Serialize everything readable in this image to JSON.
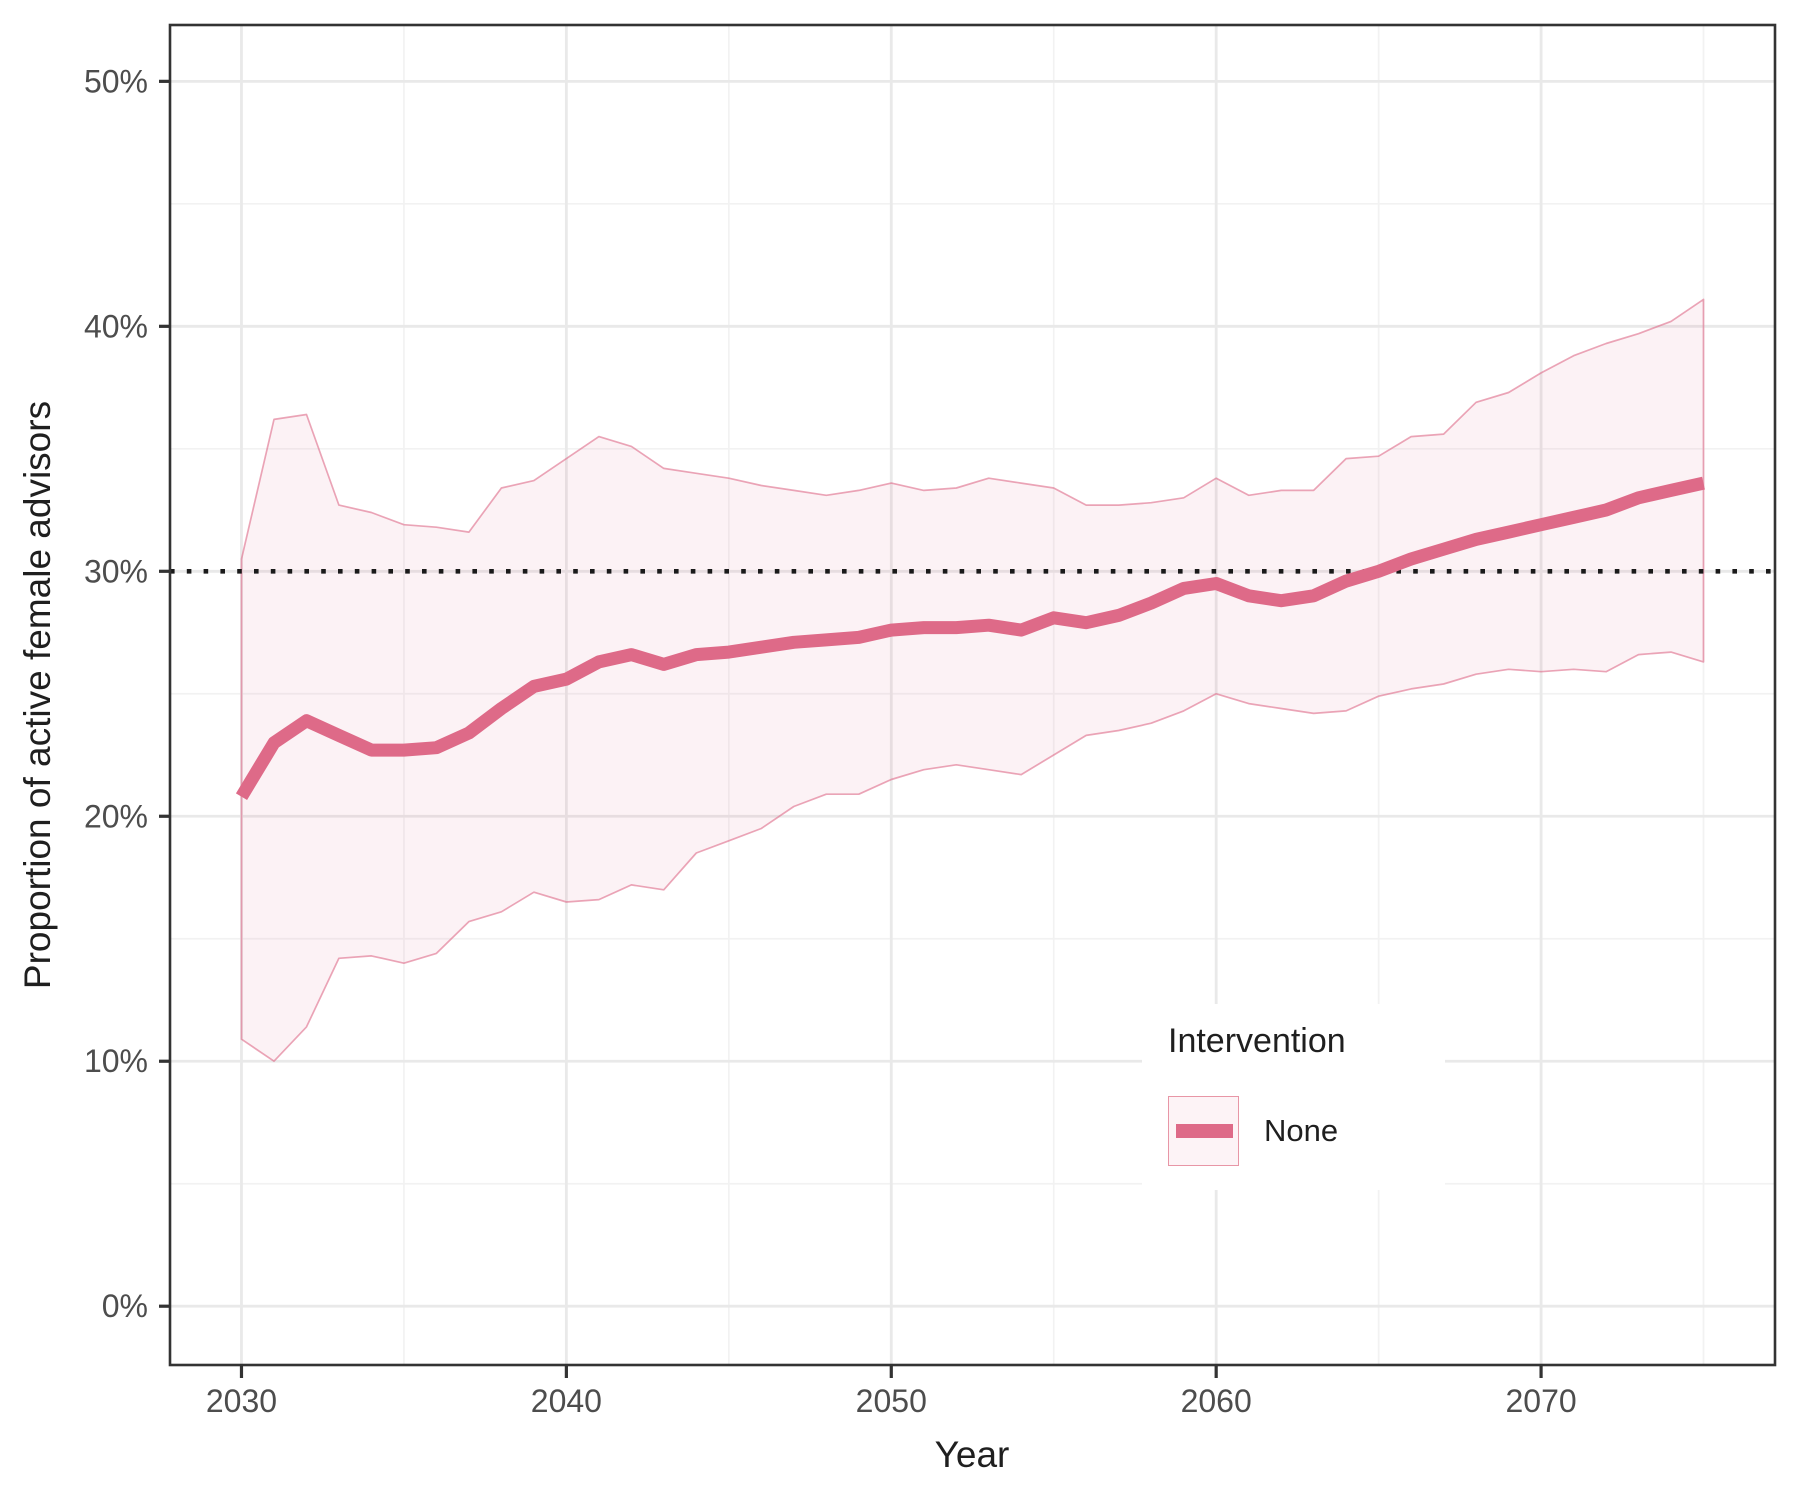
{
  "legend": {
    "title": "Intervention",
    "items": [
      {
        "label": "None",
        "line_color": "#de6a88",
        "key_fill": "#fdf3f6",
        "key_border": "#e896a6"
      }
    ]
  },
  "chart_data": {
    "type": "line",
    "title": "",
    "xlabel": "Year",
    "ylabel": "Proportion of active female advisors",
    "legend_position": "inside-right-lower",
    "grid": "on",
    "xlim": [
      2027.8,
      2077.2
    ],
    "ylim": [
      -2.4,
      52.3
    ],
    "x_ticks_major": [
      2030,
      2040,
      2050,
      2060,
      2070
    ],
    "x_tick_labels": [
      "2030",
      "2040",
      "2050",
      "2060",
      "2070"
    ],
    "x_ticks_minor": [
      2035,
      2045,
      2055,
      2065,
      2075
    ],
    "y_ticks_major": [
      0,
      10,
      20,
      30,
      40,
      50
    ],
    "y_tick_labels": [
      "0%",
      "10%",
      "20%",
      "30%",
      "40%",
      "50%"
    ],
    "y_ticks_minor": [
      5,
      15,
      25,
      35,
      45
    ],
    "reference_line_y": 30,
    "x": [
      2030,
      2031,
      2032,
      2033,
      2034,
      2035,
      2036,
      2037,
      2038,
      2039,
      2040,
      2041,
      2042,
      2043,
      2044,
      2045,
      2046,
      2047,
      2048,
      2049,
      2050,
      2051,
      2052,
      2053,
      2054,
      2055,
      2056,
      2057,
      2058,
      2059,
      2060,
      2061,
      2062,
      2063,
      2064,
      2065,
      2066,
      2067,
      2068,
      2069,
      2070,
      2071,
      2072,
      2073,
      2074,
      2075
    ],
    "series": [
      {
        "name": "None (median)",
        "values": [
          20.8,
          23.0,
          23.9,
          23.3,
          22.7,
          22.7,
          22.8,
          23.4,
          24.4,
          25.3,
          25.6,
          26.3,
          26.6,
          26.2,
          26.6,
          26.7,
          26.9,
          27.1,
          27.2,
          27.3,
          27.6,
          27.7,
          27.7,
          27.8,
          27.6,
          28.1,
          27.9,
          28.2,
          28.7,
          29.3,
          29.5,
          29.0,
          28.8,
          29.0,
          29.6,
          30.0,
          30.5,
          30.9,
          31.3,
          31.6,
          31.9,
          32.2,
          32.5,
          33.0,
          33.3,
          33.6
        ]
      },
      {
        "name": "None (upper band)",
        "values": [
          30.5,
          36.2,
          36.4,
          32.7,
          32.4,
          31.9,
          31.8,
          31.6,
          33.4,
          33.7,
          34.6,
          35.5,
          35.1,
          34.2,
          34.0,
          33.8,
          33.5,
          33.3,
          33.1,
          33.3,
          33.6,
          33.3,
          33.4,
          33.8,
          33.6,
          33.4,
          32.7,
          32.7,
          32.8,
          33.0,
          33.8,
          33.1,
          33.3,
          33.3,
          34.6,
          34.7,
          35.5,
          35.6,
          36.9,
          37.3,
          38.1,
          38.8,
          39.3,
          39.7,
          40.2,
          41.1
        ]
      },
      {
        "name": "None (lower band)",
        "values": [
          10.9,
          10.0,
          11.4,
          14.2,
          14.3,
          14.0,
          14.4,
          15.7,
          16.1,
          16.9,
          16.5,
          16.6,
          17.2,
          17.0,
          18.5,
          19.0,
          19.5,
          20.4,
          20.9,
          20.9,
          21.5,
          21.9,
          22.1,
          21.9,
          21.7,
          22.5,
          23.3,
          23.5,
          23.8,
          24.3,
          25.0,
          24.6,
          24.4,
          24.2,
          24.3,
          24.9,
          25.2,
          25.4,
          25.8,
          26.0,
          25.9,
          26.0,
          25.9,
          26.6,
          26.7,
          26.3
        ]
      }
    ],
    "style": {
      "line_color": "#de6a88",
      "line_width": 13,
      "ribbon_edge_color": "#de6a88",
      "ribbon_edge_alpha": 0.6,
      "ribbon_fill_color": "#de6a88",
      "ribbon_fill_alpha": 0.085,
      "reference_line_color": "#1a1a1a",
      "grid_major_color": "#e9e9e9",
      "grid_minor_color": "#f2f2f2",
      "panel_border_color": "#333333",
      "tick_color": "#333333",
      "tick_label_color": "#4d4d4d"
    }
  }
}
